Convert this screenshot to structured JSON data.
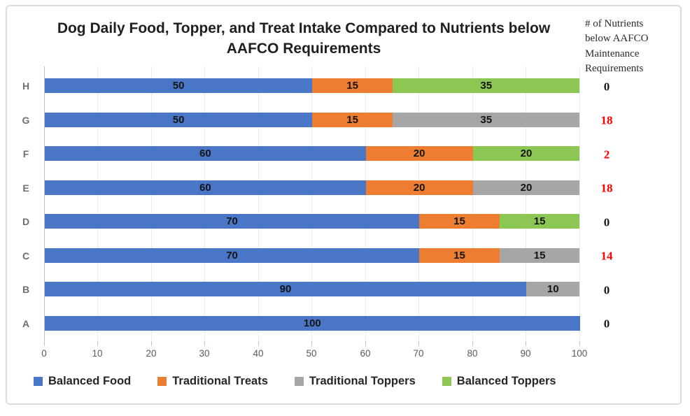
{
  "title": "Dog Daily Food, Topper, and Treat Intake Compared to Nutrients below AAFCO Requirements",
  "right_column_header": "# of Nutrients below AAFCO Maintenance Requirements",
  "chart_data": {
    "type": "bar",
    "orientation": "horizontal",
    "stacked": true,
    "title": "Dog Daily Food, Topper, and Treat Intake Compared to Nutrients below AAFCO Requirements",
    "categories": [
      "H",
      "G",
      "F",
      "E",
      "D",
      "C",
      "B",
      "A"
    ],
    "series": [
      {
        "name": "Balanced Food",
        "color": "#4a76c8",
        "values": [
          50,
          50,
          60,
          60,
          70,
          70,
          90,
          100
        ]
      },
      {
        "name": "Traditional Treats",
        "color": "#ed7d31",
        "values": [
          15,
          15,
          20,
          20,
          15,
          15,
          0,
          0
        ]
      },
      {
        "name": "Traditional Toppers",
        "color": "#a6a6a6",
        "values": [
          0,
          35,
          0,
          20,
          0,
          15,
          10,
          0
        ]
      },
      {
        "name": "Balanced Toppers",
        "color": "#8cc653",
        "values": [
          35,
          0,
          20,
          0,
          15,
          0,
          0,
          0
        ]
      }
    ],
    "xlim": [
      0,
      100
    ],
    "x_ticks": [
      0,
      10,
      20,
      30,
      40,
      50,
      60,
      70,
      80,
      90,
      100
    ],
    "grid": "vertical",
    "legend_position": "bottom",
    "data_labels": true,
    "annotations": {
      "header": "# of Nutrients below AAFCO Maintenance Requirements",
      "values": [
        "0",
        "18",
        "2",
        "18",
        "0",
        "14",
        "0",
        "0"
      ],
      "colors": [
        "#1a1a1a",
        "#ff0000",
        "#ff0000",
        "#ff0000",
        "#1a1a1a",
        "#ff0000",
        "#1a1a1a",
        "#1a1a1a"
      ]
    }
  },
  "legend": {
    "items": [
      "Balanced Food",
      "Traditional Treats",
      "Traditional Toppers",
      "Balanced Toppers"
    ]
  }
}
